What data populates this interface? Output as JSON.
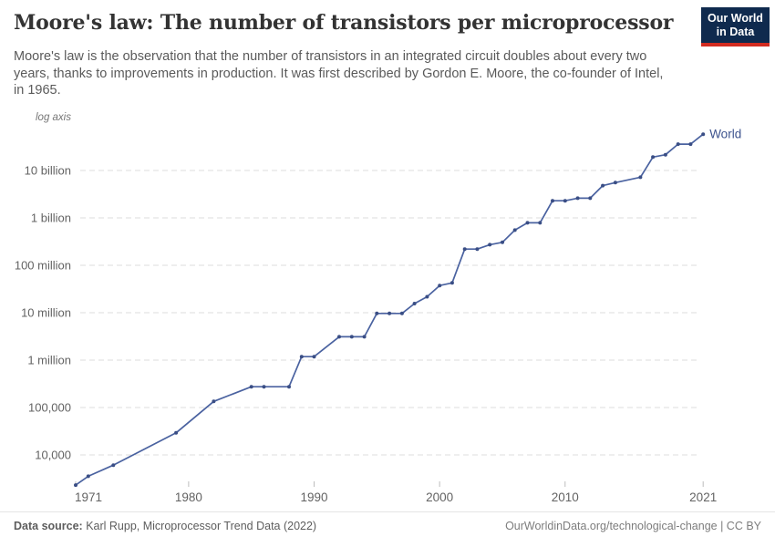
{
  "header": {
    "title": "Moore's law: The number of transistors per microprocessor",
    "subtitle_lines": [
      "Moore's law is the observation that the number of transistors in an integrated circuit doubles about every two",
      "years, thanks to improvements in production. It was first described by Gordon E. Moore, the co-founder of Intel,",
      "in 1965."
    ],
    "logo": {
      "line1": "Our World",
      "line2": "in Data"
    }
  },
  "chart_data": {
    "type": "line",
    "title": "Moore's law: The number of transistors per microprocessor",
    "y_axis_note": "log axis",
    "scale_y": "log",
    "grid": true,
    "legend_position": "line-end",
    "x_domain": [
      1971,
      2021
    ],
    "y_domain": [
      10000,
      10000000000
    ],
    "x_ticks": [
      1971,
      1980,
      1990,
      2000,
      2010,
      2021
    ],
    "y_ticks": [
      {
        "label": "10,000",
        "value": 10000
      },
      {
        "label": "100,000",
        "value": 100000
      },
      {
        "label": "1 million",
        "value": 1000000
      },
      {
        "label": "10 million",
        "value": 10000000
      },
      {
        "label": "100 million",
        "value": 100000000
      },
      {
        "label": "1 billion",
        "value": 1000000000
      },
      {
        "label": "10 billion",
        "value": 10000000000
      }
    ],
    "series": [
      {
        "name": "World",
        "points": [
          [
            1971,
            2308
          ],
          [
            1972,
            3555
          ],
          [
            1974,
            6098
          ],
          [
            1979,
            29161
          ],
          [
            1982,
            134753
          ],
          [
            1985,
            273842
          ],
          [
            1986,
            273842
          ],
          [
            1988,
            273842
          ],
          [
            1989,
            1181588
          ],
          [
            1990,
            1181588
          ],
          [
            1992,
            3101787
          ],
          [
            1993,
            3101787
          ],
          [
            1994,
            3101787
          ],
          [
            1995,
            9646681
          ],
          [
            1996,
            9646681
          ],
          [
            1997,
            9646681
          ],
          [
            1998,
            15600000
          ],
          [
            1999,
            21666667
          ],
          [
            2000,
            37500000
          ],
          [
            2001,
            42458333
          ],
          [
            2002,
            220000000
          ],
          [
            2003,
            220000000
          ],
          [
            2004,
            271666667
          ],
          [
            2005,
            305000000
          ],
          [
            2006,
            552500000
          ],
          [
            2007,
            789000000
          ],
          [
            2008,
            789000000
          ],
          [
            2009,
            2300000000
          ],
          [
            2010,
            2300000000
          ],
          [
            2011,
            2600000000
          ],
          [
            2012,
            2600000000
          ],
          [
            2013,
            4800000000
          ],
          [
            2014,
            5560000000
          ],
          [
            2016,
            7200000000
          ],
          [
            2017,
            19200000000
          ],
          [
            2018,
            21500000000
          ],
          [
            2019,
            36000000000
          ],
          [
            2020,
            36000000000
          ],
          [
            2021,
            58200000000
          ]
        ]
      }
    ]
  },
  "footer": {
    "source_label": "Data source:",
    "source_text": " Karl Rupp, Microprocessor Trend Data (2022)",
    "link_text": "OurWorldinData.org/technological-change | CC BY"
  },
  "colors": {
    "series_line": "#4a62a0",
    "series_marker": "#3a4e85",
    "series_label": "#3d538e",
    "grid": "#dcdcdc",
    "tick": "#bdbdbd",
    "axis_text": "#636363",
    "axis_note_text": "#757575",
    "logo_bg": "#0f2a4e",
    "logo_accent": "#d22b20"
  }
}
